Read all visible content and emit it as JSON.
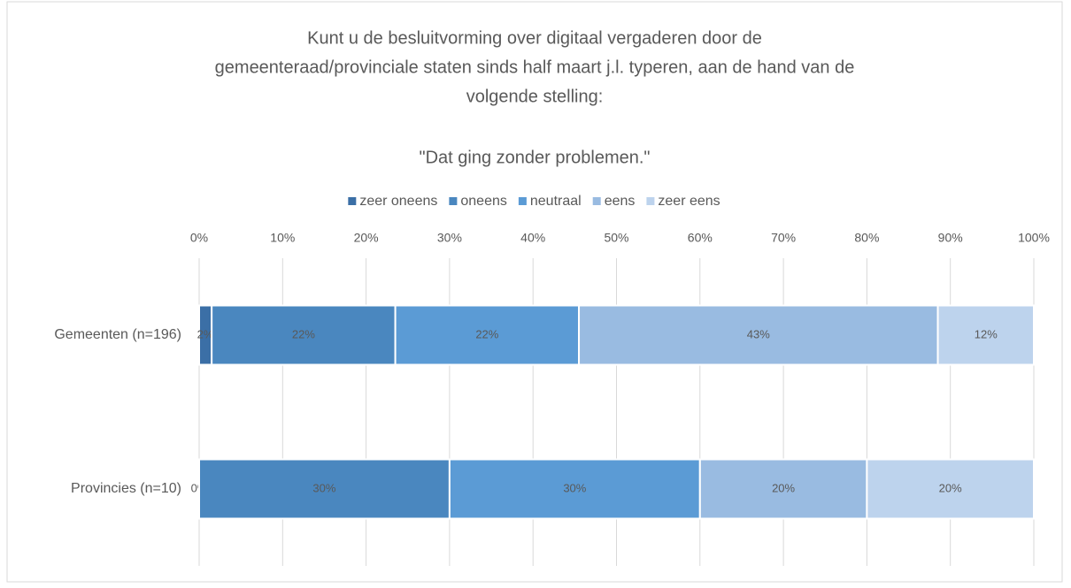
{
  "chart_data": {
    "type": "stacked_bar_horizontal",
    "title": [
      "Kunt u de besluitvorming over digitaal vergaderen door de",
      "gemeenteraad/provinciale staten sinds half maart j.l. typeren, aan de hand van de",
      "volgende stelling:"
    ],
    "subtitle": "\"Dat ging zonder problemen.\"",
    "categories": [
      "Gemeenten (n=196)",
      "Provincies (n=10)"
    ],
    "series": [
      {
        "name": "zeer oneens",
        "color": "#3b6fa6",
        "values": [
          1.5,
          0
        ],
        "value_labels": [
          "2%",
          "0%"
        ]
      },
      {
        "name": "oneens",
        "color": "#4a87bf",
        "values": [
          22,
          30
        ],
        "value_labels": [
          "22%",
          "30%"
        ]
      },
      {
        "name": "neutraal",
        "color": "#5b9bd5",
        "values": [
          22,
          30
        ],
        "value_labels": [
          "22%",
          "30%"
        ]
      },
      {
        "name": "eens",
        "color": "#99bbe1",
        "values": [
          43,
          20
        ],
        "value_labels": [
          "43%",
          "20%"
        ]
      },
      {
        "name": "zeer eens",
        "color": "#bdd3ed",
        "values": [
          11.5,
          20
        ],
        "value_labels": [
          "12%",
          "20%"
        ]
      }
    ],
    "xlim": [
      0,
      100
    ],
    "xticks": [
      {
        "value": 0,
        "label": "0%"
      },
      {
        "value": 10,
        "label": "10%"
      },
      {
        "value": 20,
        "label": "20%"
      },
      {
        "value": 30,
        "label": "30%"
      },
      {
        "value": 40,
        "label": "40%"
      },
      {
        "value": 50,
        "label": "50%"
      },
      {
        "value": 60,
        "label": "60%"
      },
      {
        "value": 70,
        "label": "70%"
      },
      {
        "value": 80,
        "label": "80%"
      },
      {
        "value": 90,
        "label": "90%"
      },
      {
        "value": 100,
        "label": "100%"
      }
    ],
    "grid": true,
    "legend": "top"
  }
}
